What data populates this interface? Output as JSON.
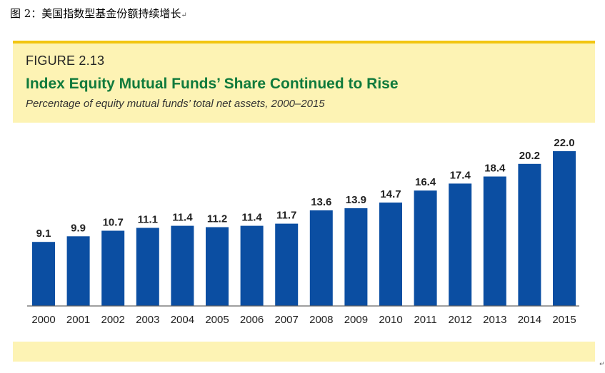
{
  "document": {
    "caption": "图 2：美国指数型基金份额持续增长"
  },
  "colors": {
    "bar": "#0b4ea2",
    "title": "#0f7a3c",
    "panel": "#fdf3b4",
    "panel_border": "#f2c511"
  },
  "chart_data": {
    "type": "bar",
    "figure_label": "FIGURE 2.13",
    "title": "Index Equity Mutual Funds’ Share Continued to Rise",
    "subtitle": "Percentage of equity mutual funds’ total net assets, 2000–2015",
    "xlabel": "",
    "ylabel": "",
    "categories": [
      "2000",
      "2001",
      "2002",
      "2003",
      "2004",
      "2005",
      "2006",
      "2007",
      "2008",
      "2009",
      "2010",
      "2011",
      "2012",
      "2013",
      "2014",
      "2015"
    ],
    "values": [
      9.1,
      9.9,
      10.7,
      11.1,
      11.4,
      11.2,
      11.4,
      11.7,
      13.6,
      13.9,
      14.7,
      16.4,
      17.4,
      18.4,
      20.2,
      22.0
    ],
    "value_labels": [
      "9.1",
      "9.9",
      "10.7",
      "11.1",
      "11.4",
      "11.2",
      "11.4",
      "11.7",
      "13.6",
      "13.9",
      "14.7",
      "16.4",
      "17.4",
      "18.4",
      "20.2",
      "22.0"
    ],
    "ylim": [
      0,
      22.0
    ],
    "grid": false,
    "legend": "none"
  }
}
